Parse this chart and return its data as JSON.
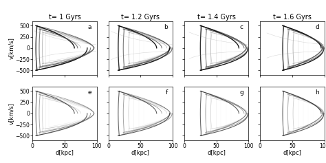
{
  "titles": [
    "t= 1 Gyrs",
    "t= 1.2 Gyrs",
    "t= 1.4 Gyrs",
    "t= 1.6 Gyrs"
  ],
  "panel_labels": [
    "a",
    "b",
    "c",
    "d",
    "e",
    "f",
    "g",
    "h"
  ],
  "xlim": [
    0,
    100
  ],
  "ylim": [
    -600,
    600
  ],
  "xlabel": "d[kpc]",
  "ylabel": "v[km/s]",
  "yticks": [
    -500,
    -250,
    0,
    250,
    500
  ],
  "xticks": [
    0,
    50,
    100
  ],
  "nrows": 2,
  "ncols": 4,
  "figsize": [
    4.74,
    2.37
  ],
  "dpi": 100,
  "t_vals": [
    1.0,
    1.2,
    1.4,
    1.6
  ]
}
